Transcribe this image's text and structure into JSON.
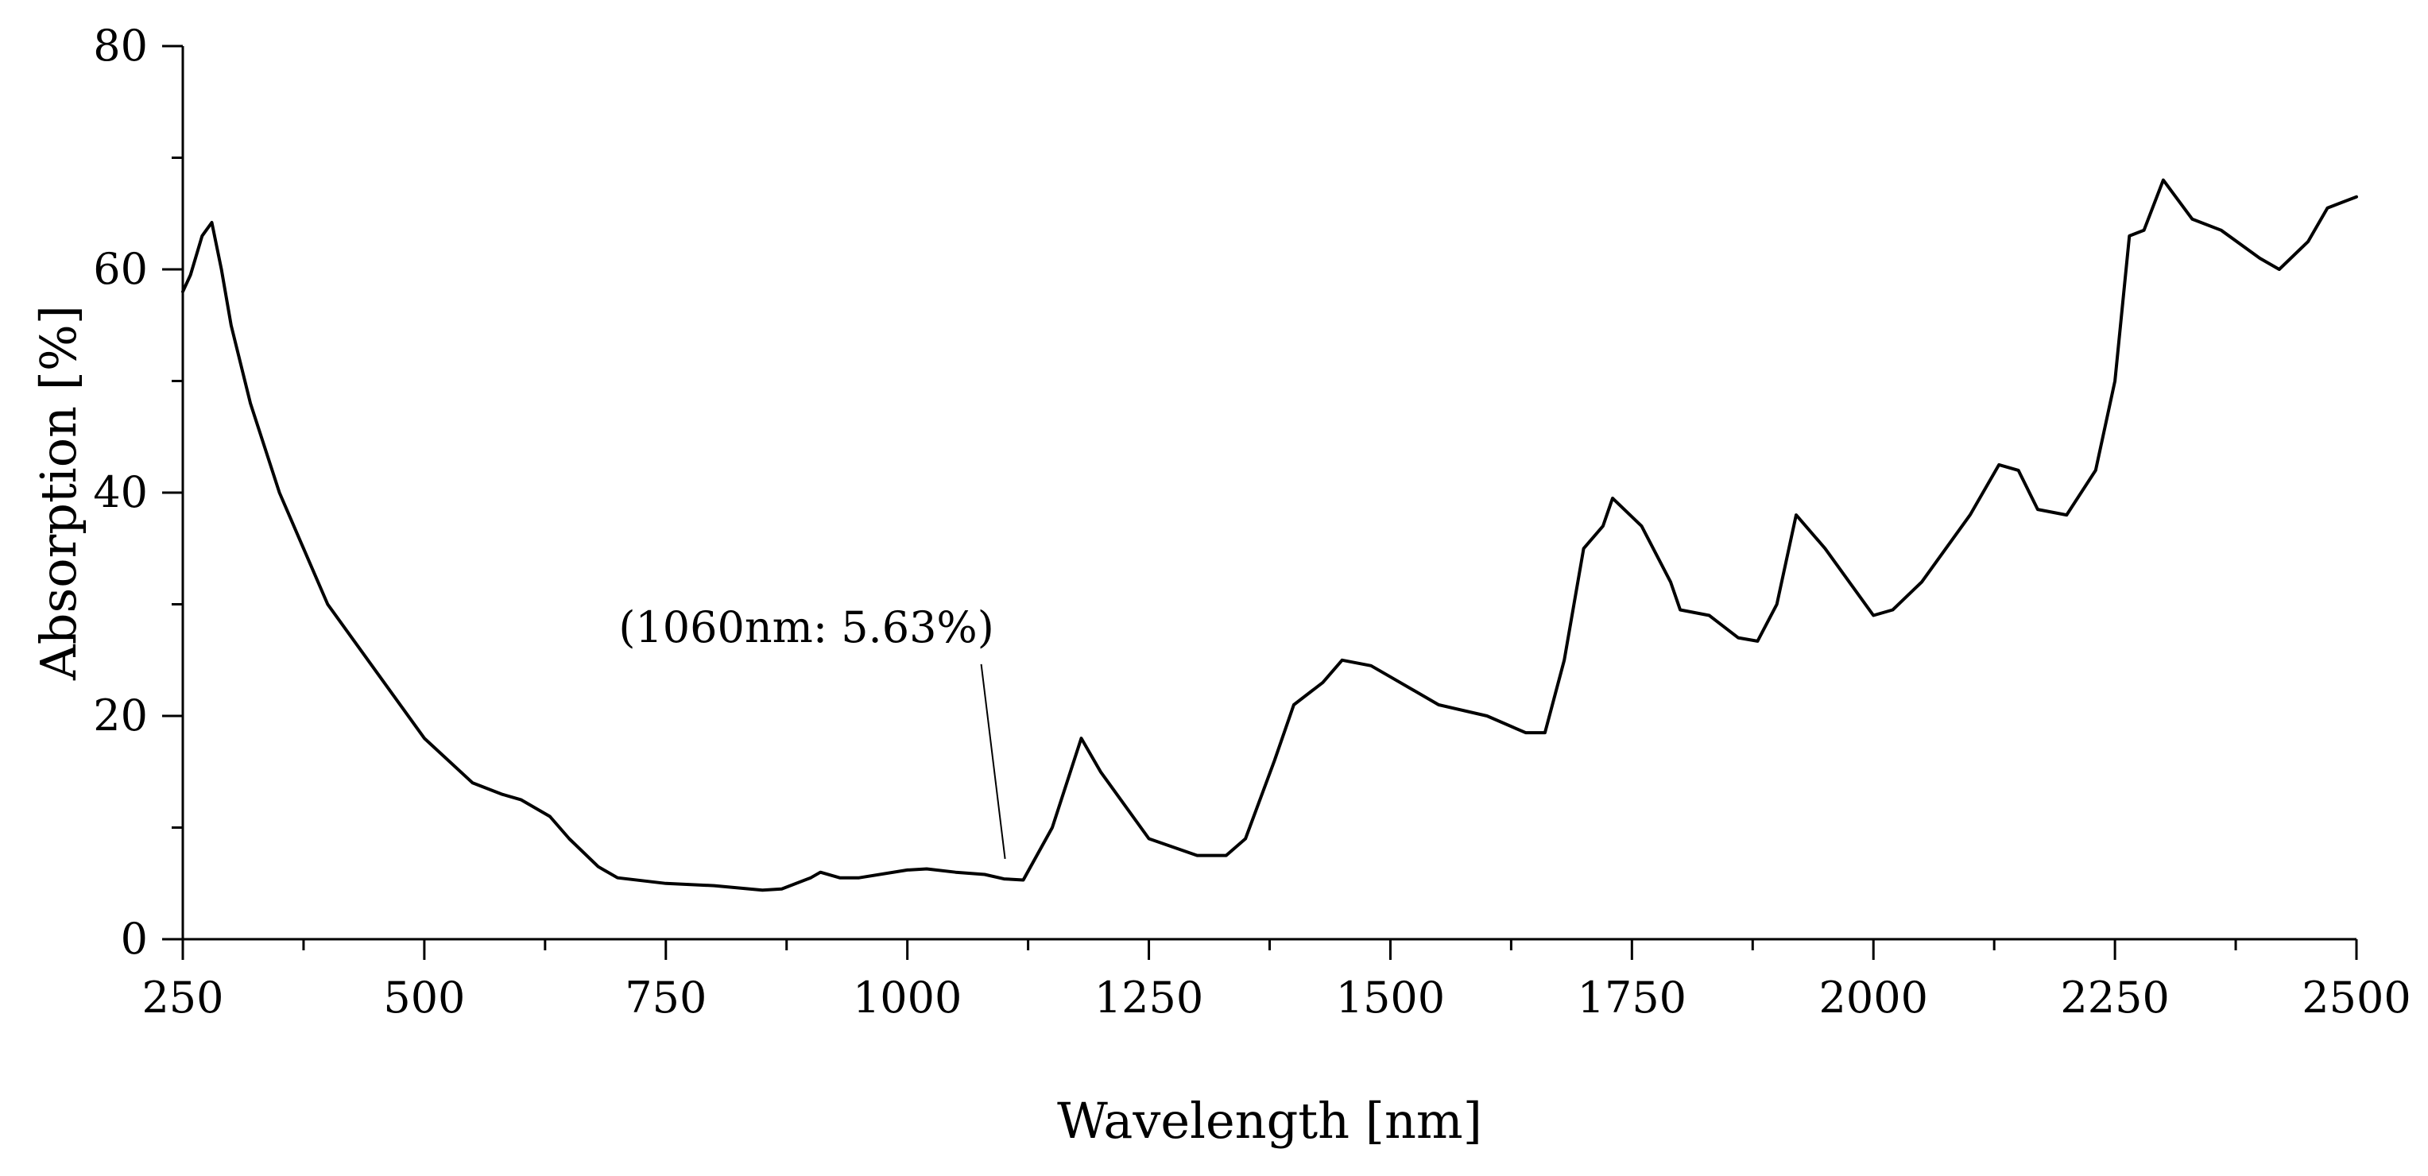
{
  "chart_data": {
    "type": "line",
    "title": "",
    "xlabel": "Wavelength [nm]",
    "ylabel": "Absorption [%]",
    "xlim": [
      250,
      2500
    ],
    "ylim": [
      0,
      80
    ],
    "xticks": [
      250,
      500,
      750,
      1000,
      1250,
      1500,
      1750,
      2000,
      2250,
      2500
    ],
    "yticks": [
      0,
      20,
      40,
      60,
      80
    ],
    "xtick_labels": [
      "250",
      "500",
      "750",
      "1000",
      "1250",
      "1500",
      "1750",
      "2000",
      "2250",
      "2500"
    ],
    "ytick_labels": [
      "0",
      "20",
      "40",
      "60",
      "80"
    ],
    "grid": false,
    "series": [
      {
        "name": "Absorption",
        "color": "#000000",
        "x": [
          250,
          258,
          270,
          280,
          290,
          300,
          320,
          350,
          380,
          400,
          450,
          500,
          550,
          580,
          600,
          630,
          650,
          680,
          700,
          750,
          800,
          850,
          870,
          900,
          910,
          930,
          950,
          1000,
          1020,
          1050,
          1080,
          1100,
          1120,
          1150,
          1180,
          1200,
          1250,
          1300,
          1330,
          1350,
          1380,
          1400,
          1430,
          1450,
          1480,
          1500,
          1550,
          1600,
          1640,
          1660,
          1680,
          1700,
          1720,
          1730,
          1760,
          1790,
          1800,
          1830,
          1860,
          1880,
          1900,
          1920,
          1950,
          2000,
          2020,
          2050,
          2100,
          2130,
          2150,
          2170,
          2200,
          2230,
          2250,
          2265,
          2280,
          2300,
          2330,
          2360,
          2400,
          2420,
          2450,
          2470,
          2500
        ],
        "y": [
          58,
          59.5,
          63,
          64.2,
          60,
          55,
          48,
          40,
          34,
          30,
          24,
          18,
          14,
          13,
          12.5,
          11,
          9,
          6.5,
          5.5,
          5,
          4.8,
          4.4,
          4.5,
          5.5,
          6,
          5.5,
          5.5,
          6.2,
          6.3,
          6,
          5.8,
          5.4,
          5.3,
          10,
          18,
          15,
          9,
          7.5,
          7.5,
          9,
          16,
          21,
          23,
          25,
          24.5,
          23.5,
          21,
          20,
          18.5,
          18.5,
          25,
          35,
          37,
          39.5,
          37,
          32,
          29.5,
          29,
          27,
          26.7,
          30,
          38,
          35,
          29,
          29.5,
          32,
          38,
          42.5,
          42,
          38.5,
          38,
          42,
          50,
          63,
          63.5,
          68,
          64.5,
          63.5,
          61,
          60,
          62.5,
          65.5,
          66.5
        ]
      }
    ],
    "annotations": [
      {
        "text": "(1060nm: 5.63%)",
        "x": 1060,
        "y": 5.63
      }
    ]
  }
}
